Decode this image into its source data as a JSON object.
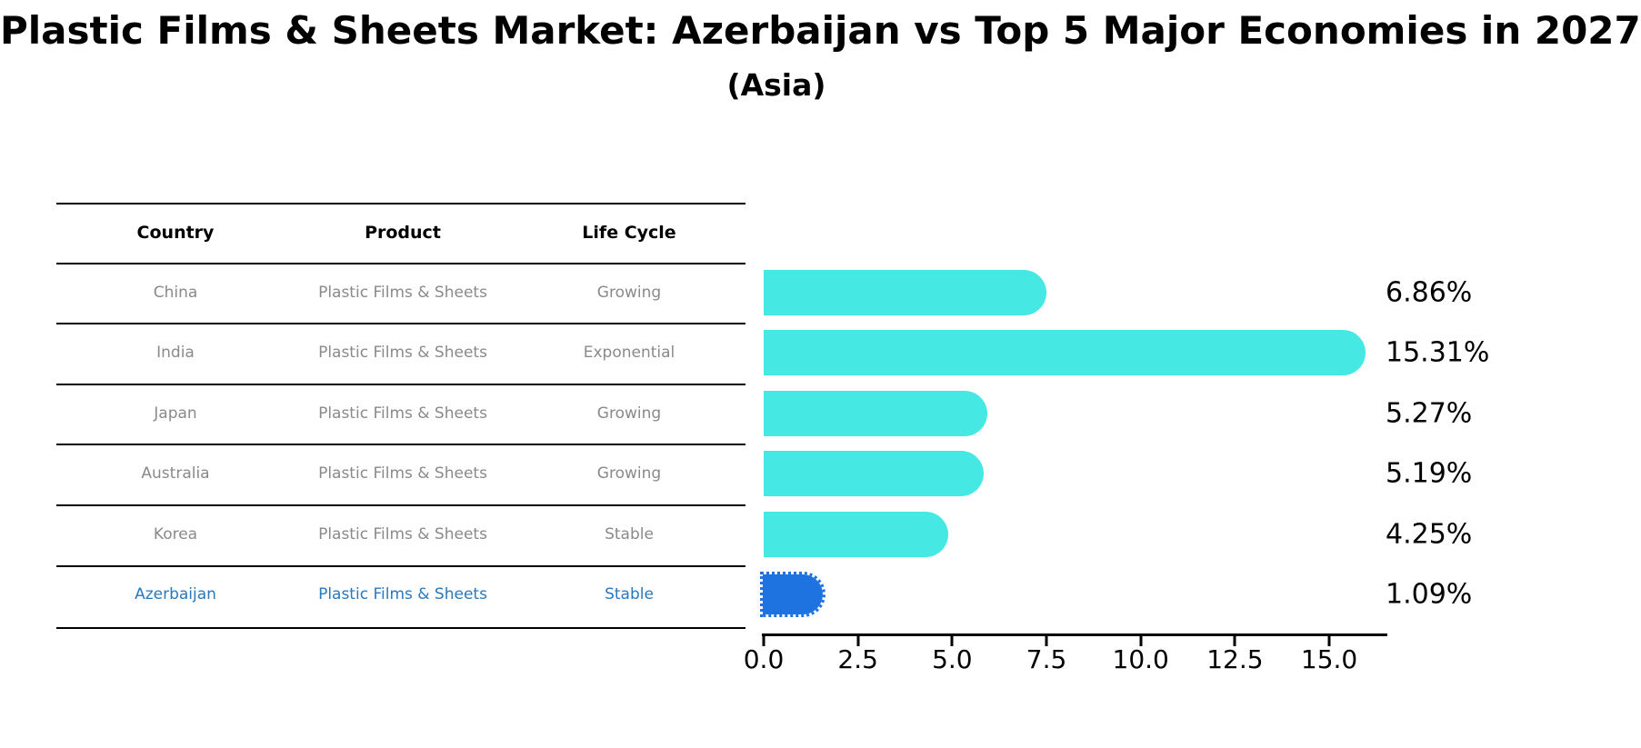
{
  "title": "Plastic Films & Sheets Market: Azerbaijan vs Top 5 Major Economies in 2027",
  "subtitle": "(Asia)",
  "table": {
    "headers": [
      "Country",
      "Product",
      "Life Cycle"
    ],
    "rows": [
      {
        "country": "China",
        "product": "Plastic Films & Sheets",
        "life_cycle": "Growing",
        "highlighted": false
      },
      {
        "country": "India",
        "product": "Plastic Films & Sheets",
        "life_cycle": "Exponential",
        "highlighted": false
      },
      {
        "country": "Japan",
        "product": "Plastic Films & Sheets",
        "life_cycle": "Growing",
        "highlighted": false
      },
      {
        "country": "Australia",
        "product": "Plastic Films & Sheets",
        "life_cycle": "Growing",
        "highlighted": false
      },
      {
        "country": "Korea",
        "product": "Plastic Films & Sheets",
        "life_cycle": "Stable",
        "highlighted": false
      },
      {
        "country": "Azerbaijan",
        "product": "Plastic Films & Sheets",
        "life_cycle": "Stable",
        "highlighted": true
      }
    ]
  },
  "chart_data": {
    "type": "bar",
    "orientation": "horizontal",
    "title": "Plastic Films & Sheets Market: Azerbaijan vs Top 5 Major Economies in 2027",
    "subtitle": "(Asia)",
    "categories": [
      "China",
      "India",
      "Japan",
      "Australia",
      "Korea",
      "Azerbaijan"
    ],
    "values": [
      6.86,
      15.31,
      5.27,
      5.19,
      4.25,
      1.09
    ],
    "value_labels": [
      "6.86%",
      "15.31%",
      "5.27%",
      "5.19%",
      "4.25%",
      "1.09%"
    ],
    "x_ticks": [
      "0.0",
      "2.5",
      "5.0",
      "7.5",
      "10.0",
      "12.5",
      "15.0"
    ],
    "xlim": [
      0,
      16.5
    ],
    "xlabel": "",
    "ylabel": "",
    "grid": false,
    "legend": false,
    "bar_color": "#45E8E2",
    "highlight_index": 5,
    "highlight_bar_color": "#1E73E0",
    "highlight_bar_style": "dotted-outline",
    "highlight_text_color": "#2878BE"
  }
}
